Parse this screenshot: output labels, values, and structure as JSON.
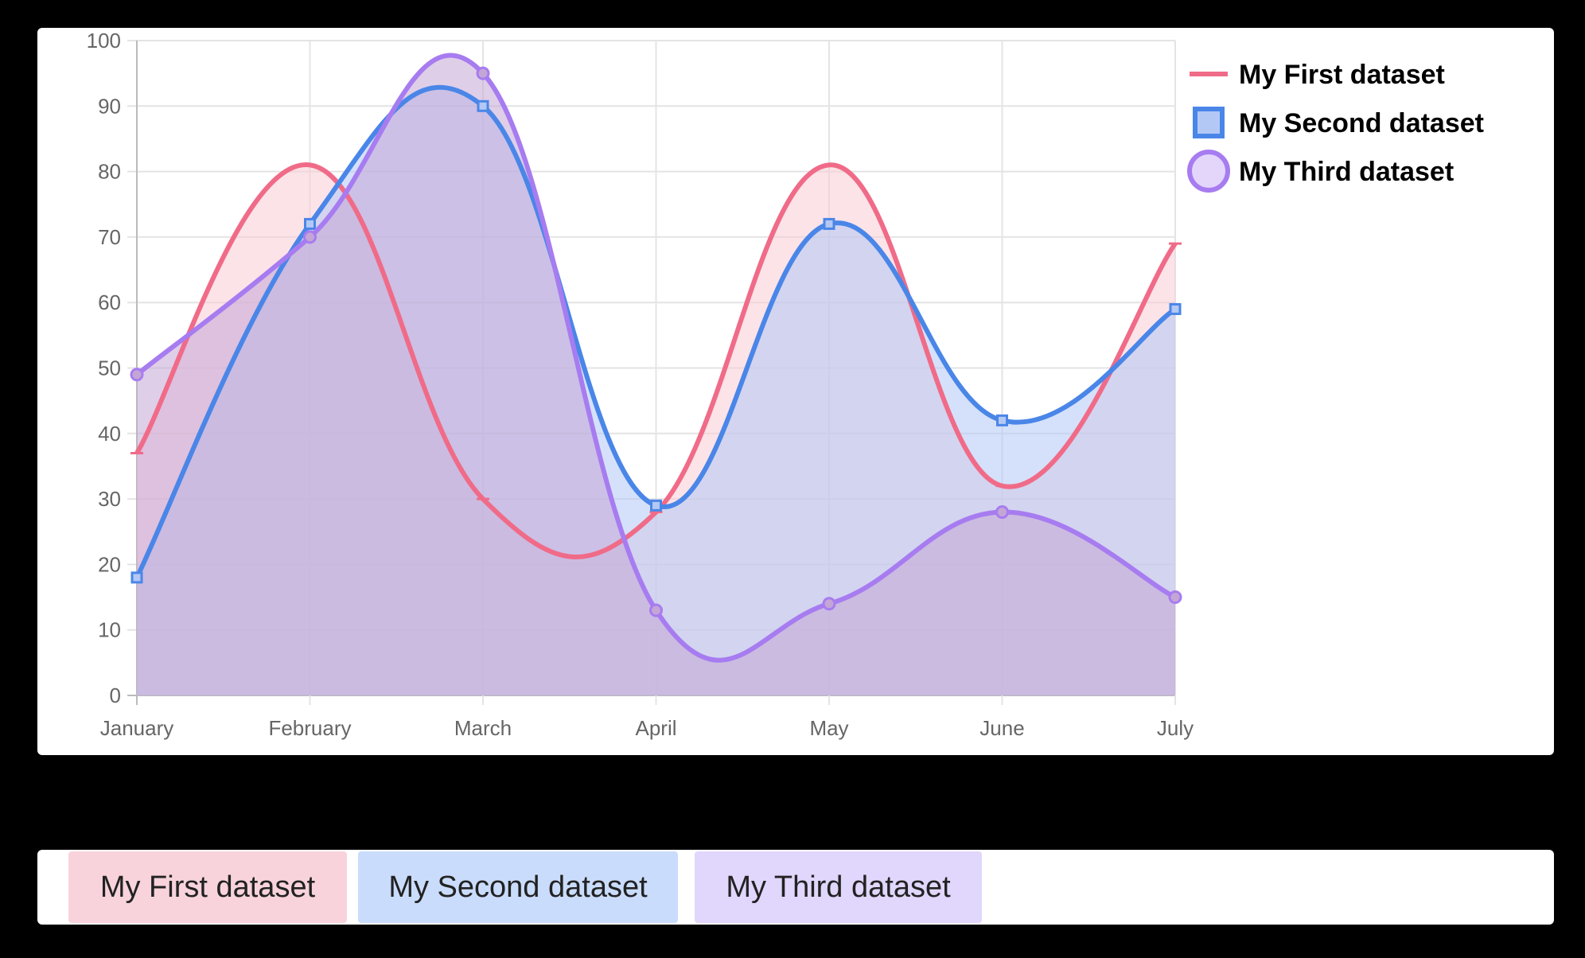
{
  "chart_data": {
    "type": "line",
    "categories": [
      "January",
      "February",
      "March",
      "April",
      "May",
      "June",
      "July"
    ],
    "ylim": [
      0,
      100
    ],
    "y_ticks": [
      0,
      10,
      20,
      30,
      40,
      50,
      60,
      70,
      80,
      90,
      100
    ],
    "grid": true,
    "legend_position": "right",
    "smooth": true,
    "filled": true,
    "series": [
      {
        "name": "My First dataset",
        "values": [
          37,
          81,
          30,
          28,
          81,
          32,
          69
        ],
        "color": "#f06b88",
        "fill": "#f8ccd6",
        "point_style": "dash"
      },
      {
        "name": "My Second dataset",
        "values": [
          18,
          72,
          90,
          29,
          72,
          42,
          59
        ],
        "color": "#4a86e8",
        "fill": "#b3c8f5",
        "point_style": "square"
      },
      {
        "name": "My Third dataset",
        "values": [
          49,
          70,
          95,
          13,
          14,
          28,
          15
        ],
        "color": "#a77cf0",
        "fill": "#c4a6d6",
        "point_style": "circle"
      }
    ]
  },
  "buttons": {
    "first_label": "My First dataset",
    "second_label": "My Second dataset",
    "third_label": "My Third dataset"
  }
}
